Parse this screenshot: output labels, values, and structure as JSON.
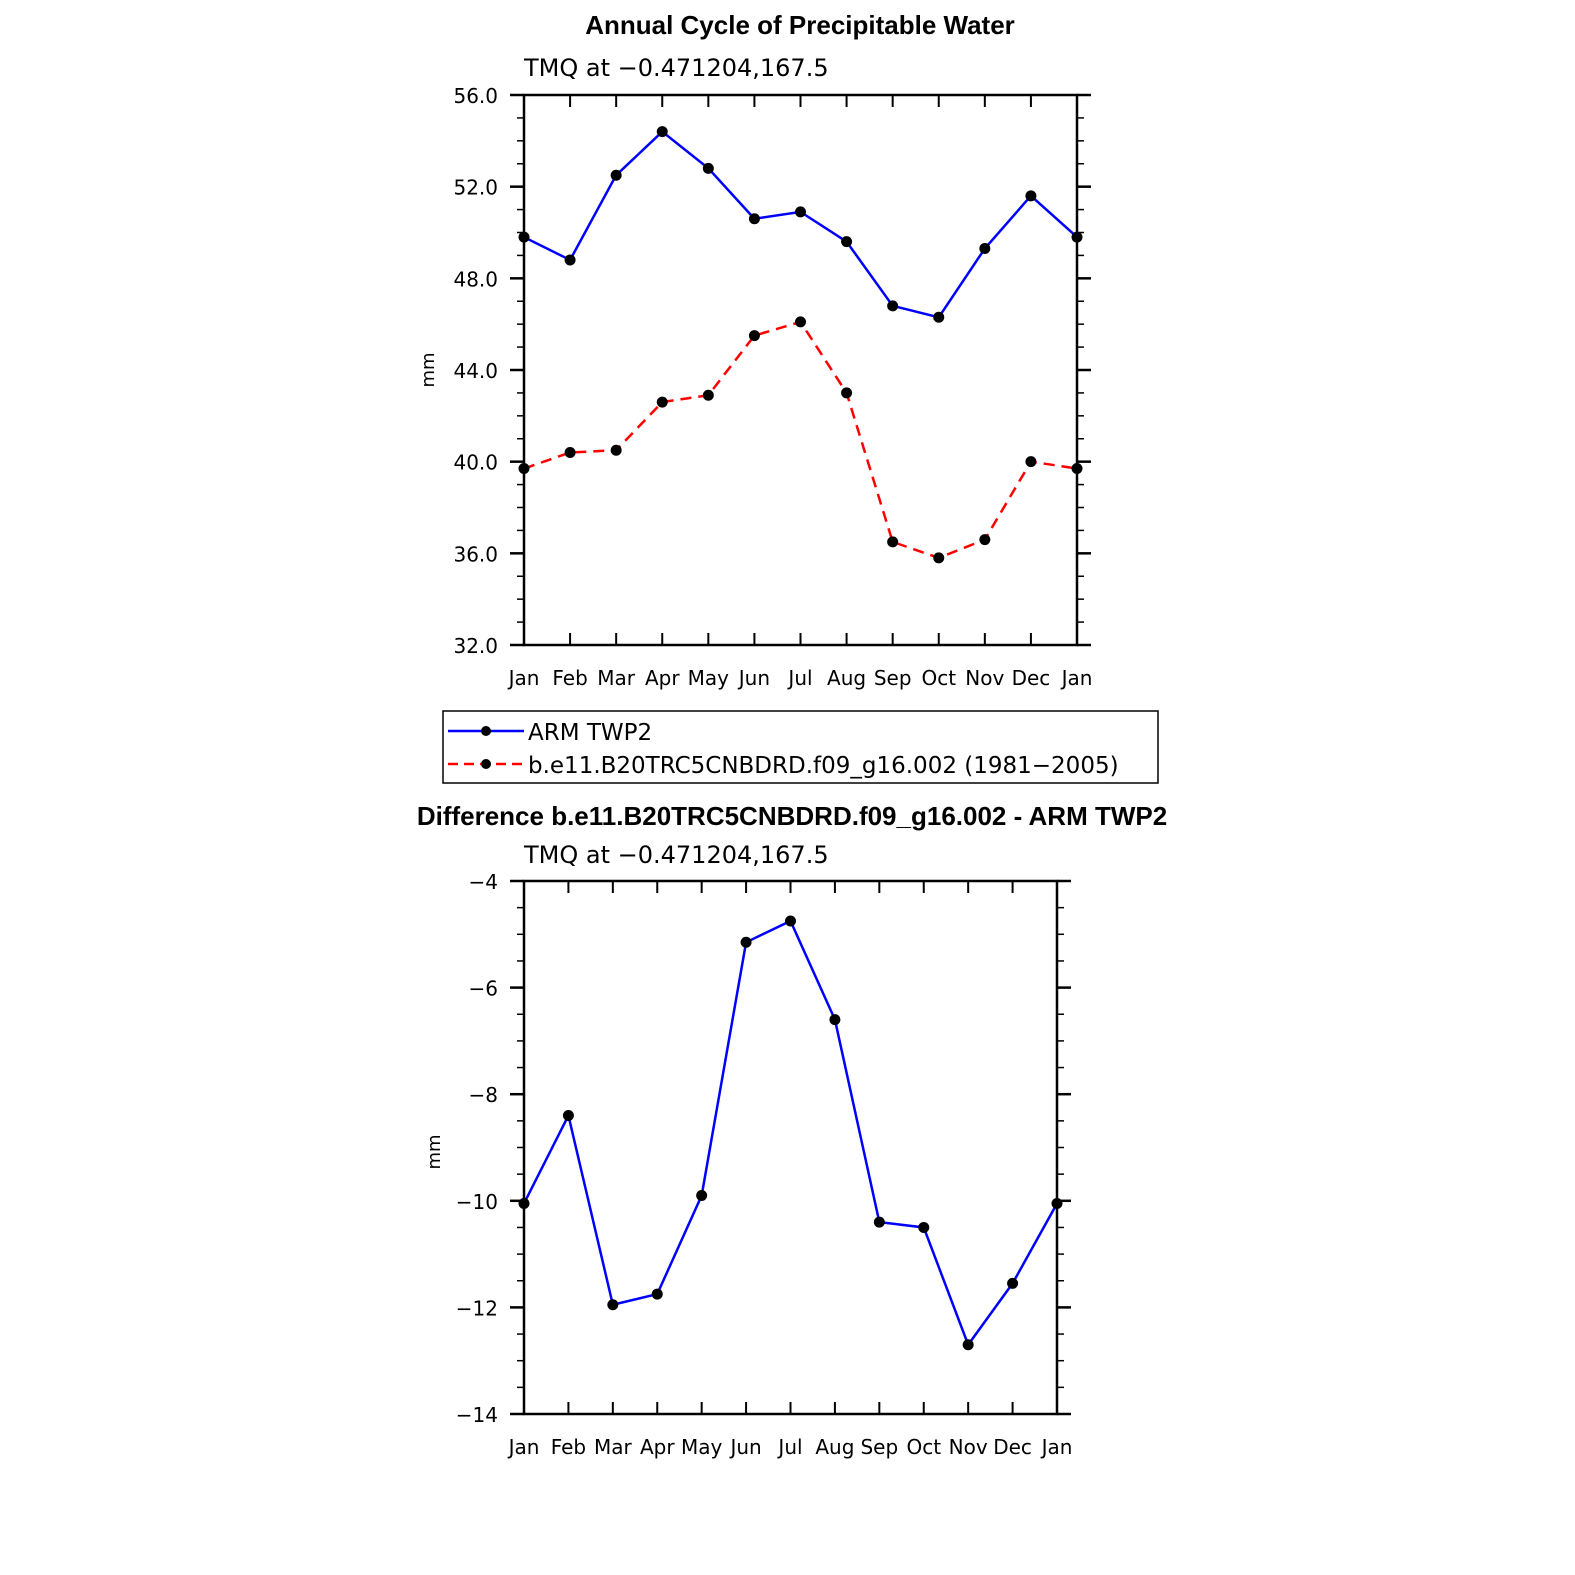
{
  "chart_data": [
    {
      "type": "line",
      "title": "Annual Cycle of Precipitable Water",
      "subtitle": "TMQ at −0.471204,167.5",
      "xlabel": "",
      "ylabel": "mm",
      "categories": [
        "Jan",
        "Feb",
        "Mar",
        "Apr",
        "May",
        "Jun",
        "Jul",
        "Aug",
        "Sep",
        "Oct",
        "Nov",
        "Dec",
        "Jan"
      ],
      "ylim": [
        32,
        56
      ],
      "yticks": [
        32,
        36,
        40,
        44,
        48,
        52,
        56
      ],
      "ytick_labels": [
        "32.0",
        "36.0",
        "40.0",
        "44.0",
        "48.0",
        "52.0",
        "56.0"
      ],
      "grid": false,
      "legend_position": "below",
      "series": [
        {
          "name": "ARM TWP2",
          "color": "#0000ff",
          "dash": "solid",
          "values": [
            49.8,
            48.8,
            52.5,
            54.4,
            52.8,
            50.6,
            50.9,
            49.6,
            46.8,
            46.3,
            49.3,
            51.6,
            49.8
          ]
        },
        {
          "name": "b.e11.B20TRC5CNBDRD.f09_g16.002 (1981−2005)",
          "color": "#ff0000",
          "dash": "dashed",
          "values": [
            39.7,
            40.4,
            40.5,
            42.6,
            42.9,
            45.5,
            46.1,
            43.0,
            36.5,
            35.8,
            36.6,
            40.0,
            39.7
          ]
        }
      ]
    },
    {
      "type": "line",
      "title": "Difference b.e11.B20TRC5CNBDRD.f09_g16.002 - ARM TWP2",
      "subtitle": "TMQ at −0.471204,167.5",
      "xlabel": "",
      "ylabel": "mm",
      "categories": [
        "Jan",
        "Feb",
        "Mar",
        "Apr",
        "May",
        "Jun",
        "Jul",
        "Aug",
        "Sep",
        "Oct",
        "Nov",
        "Dec",
        "Jan"
      ],
      "ylim": [
        -14,
        -4
      ],
      "yticks": [
        -14,
        -12,
        -10,
        -8,
        -6,
        -4
      ],
      "ytick_labels": [
        "−14",
        "−12",
        "−10",
        "−8",
        "−6",
        "−4"
      ],
      "grid": false,
      "series": [
        {
          "color": "#0000ff",
          "dash": "solid",
          "values": [
            -10.05,
            -8.4,
            -11.95,
            -11.75,
            -9.9,
            -5.15,
            -4.75,
            -6.6,
            -10.4,
            -10.5,
            -12.7,
            -11.55,
            -10.05
          ]
        }
      ]
    }
  ]
}
